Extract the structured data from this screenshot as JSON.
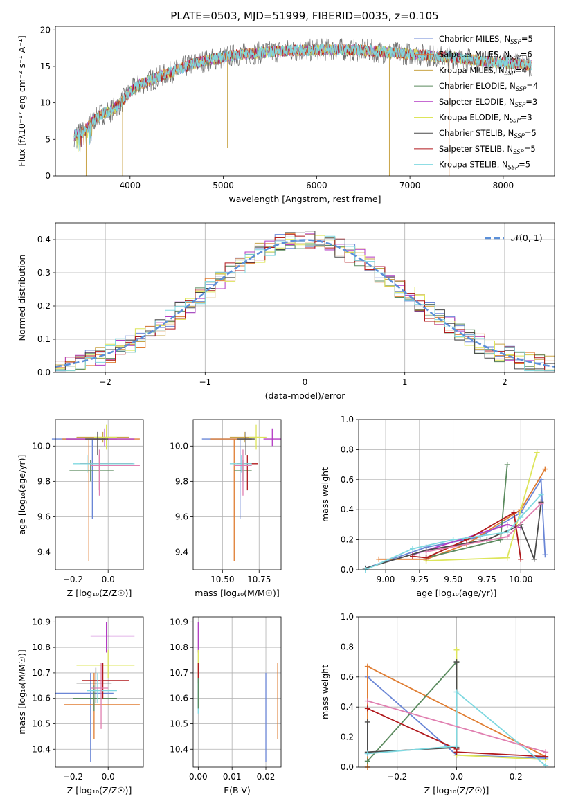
{
  "figure_title": "PLATE=0503, MJD=51999, FIBERID=0035, z=0.105",
  "colors": {
    "chabrier_miles": "#6a86d6",
    "salpeter_miles": "#e07d32",
    "kroupa_miles": "#c9a447",
    "chabrier_elodie": "#5a8a5e",
    "salpeter_elodie": "#b43ac4",
    "kroupa_elodie": "#dde55a",
    "chabrier_stelib": "#4a4a4a",
    "salpeter_stelib": "#b0181c",
    "kroupa_stelib": "#7fd8e0",
    "pink": "#e07fb0",
    "gaussian": "#5b8fd8",
    "grid": "#b0b0b0"
  },
  "chart_data": [
    {
      "id": "spectrum",
      "type": "line",
      "xlabel": "wavelength [Angstrom, rest frame]",
      "ylabel": "Flux [fλ10⁻¹⁷ erg cm⁻² s⁻¹ A⁻¹]",
      "xlim": [
        3200,
        8550
      ],
      "ylim": [
        0,
        20.5
      ],
      "xticks": [
        4000,
        5000,
        6000,
        7000,
        8000
      ],
      "yticks": [
        0,
        5,
        10,
        15,
        20
      ],
      "grid": false,
      "legend_position": "right",
      "legend": [
        "Chabrier MILES, N_SSP=5",
        "Salpeter MILES, N_SSP=6",
        "Kroupa MILES, N_SSP=4",
        "Chabrier ELODIE, N_SSP=4",
        "Salpeter ELODIE, N_SSP=3",
        "Kroupa ELODIE, N_SSP=3",
        "Chabrier STELIB, N_SSP=5",
        "Salpeter STELIB, N_SSP=5",
        "Kroupa STELIB, N_SSP=5"
      ],
      "continuum": {
        "x": [
          3400,
          3500,
          3600,
          3700,
          3800,
          3900,
          4000,
          4100,
          4300,
          4500,
          4700,
          4900,
          5100,
          5300,
          5500,
          5700,
          5900,
          6100,
          6300,
          6500,
          6700,
          6900,
          7100,
          7300,
          7500,
          7700,
          7900,
          8100,
          8300
        ],
        "y": [
          5.5,
          6.0,
          7.5,
          8.5,
          9.0,
          10.0,
          11.5,
          12.5,
          13.5,
          14.5,
          15.5,
          16.0,
          16.5,
          16.8,
          17.0,
          17.2,
          17.2,
          17.3,
          17.3,
          17.2,
          17.0,
          16.8,
          16.6,
          16.4,
          16.2,
          15.8,
          15.6,
          15.4,
          15.2
        ]
      },
      "spikes": [
        {
          "x": 3530,
          "y": 0
        },
        {
          "x": 3920,
          "y": 0
        },
        {
          "x": 5045,
          "y": 3.8
        },
        {
          "x": 6780,
          "y": 0
        },
        {
          "x": 7420,
          "y": 0
        }
      ]
    },
    {
      "id": "residual_histogram",
      "type": "histogram",
      "xlabel": "(data-model)/error",
      "ylabel": "Normed distribution",
      "xlim": [
        -2.5,
        2.5
      ],
      "ylim": [
        0,
        0.45
      ],
      "xticks": [
        -2,
        -1,
        0,
        1,
        2
      ],
      "yticks": [
        0.0,
        0.1,
        0.2,
        0.3,
        0.4
      ],
      "grid": true,
      "bin_width": 0.1,
      "gaussian_label": "𝒩(0, 1)",
      "legend_position": "top-right"
    },
    {
      "id": "age_vs_Z",
      "type": "errorbar",
      "xlabel": "Z [log₁₀(Z/Z☉)]",
      "ylabel": "age  [log₁₀(age/yr)]",
      "xlim": [
        -0.3,
        0.2
      ],
      "ylim": [
        9.3,
        10.15
      ],
      "xticks": [
        -0.2,
        0.0
      ],
      "yticks": [
        9.4,
        9.6,
        9.8,
        10.0
      ],
      "grid": true,
      "points": [
        {
          "series": "chabrier_miles",
          "x": -0.09,
          "y": 10.04,
          "xlo": -0.32,
          "xhi": 0.05,
          "ylo": 9.59,
          "yhi": 10.04
        },
        {
          "series": "salpeter_miles",
          "x": -0.11,
          "y": 10.04,
          "xlo": -0.26,
          "xhi": 0.18,
          "ylo": 9.35,
          "yhi": 10.04
        },
        {
          "series": "kroupa_miles",
          "x": -0.03,
          "y": 10.05,
          "xlo": -0.18,
          "xhi": 0.12,
          "ylo": 10.02,
          "yhi": 10.08
        },
        {
          "series": "chabrier_elodie",
          "x": -0.1,
          "y": 9.86,
          "xlo": -0.22,
          "xhi": 0.03,
          "ylo": 9.8,
          "yhi": 9.92
        },
        {
          "series": "salpeter_elodie",
          "x": -0.02,
          "y": 10.04,
          "xlo": -0.24,
          "xhi": 0.15,
          "ylo": 10.0,
          "yhi": 10.1
        },
        {
          "series": "kroupa_elodie",
          "x": -0.01,
          "y": 10.05,
          "xlo": -0.08,
          "xhi": 0.05,
          "ylo": 9.98,
          "yhi": 10.12
        },
        {
          "series": "chabrier_stelib",
          "x": -0.06,
          "y": 10.04,
          "xlo": -0.13,
          "xhi": 0.0,
          "ylo": 9.95,
          "yhi": 10.08
        },
        {
          "series": "salpeter_stelib",
          "x": -0.05,
          "y": 9.9,
          "xlo": -0.16,
          "xhi": 0.14,
          "ylo": 9.75,
          "yhi": 9.95
        },
        {
          "series": "kroupa_stelib",
          "x": -0.12,
          "y": 9.9,
          "xlo": -0.2,
          "xhi": 0.15,
          "ylo": 9.85,
          "yhi": 9.95
        },
        {
          "series": "pink",
          "x": -0.05,
          "y": 9.89,
          "xlo": -0.1,
          "xhi": 0.18,
          "ylo": 9.72,
          "yhi": 9.98
        }
      ]
    },
    {
      "id": "age_vs_mass",
      "type": "errorbar",
      "xlabel": "mass [log₁₀(M/M☉)]",
      "ylabel": "",
      "xlim": [
        10.3,
        10.9
      ],
      "ylim": [
        9.3,
        10.15
      ],
      "xticks": [
        10.5,
        10.75
      ],
      "yticks": [
        9.4,
        9.6,
        9.8,
        10.0
      ],
      "grid": true,
      "points": [
        {
          "series": "chabrier_miles",
          "x": 10.62,
          "y": 10.04,
          "xlo": 10.36,
          "xhi": 10.7,
          "ylo": 9.59,
          "yhi": 10.04
        },
        {
          "series": "salpeter_miles",
          "x": 10.58,
          "y": 10.04,
          "xlo": 10.42,
          "xhi": 10.7,
          "ylo": 9.35,
          "yhi": 10.04
        },
        {
          "series": "kroupa_miles",
          "x": 10.65,
          "y": 10.05,
          "xlo": 10.55,
          "xhi": 10.75,
          "ylo": 10.02,
          "yhi": 10.08
        },
        {
          "series": "chabrier_elodie",
          "x": 10.64,
          "y": 9.86,
          "xlo": 10.58,
          "xhi": 10.7,
          "ylo": 9.8,
          "yhi": 9.92
        },
        {
          "series": "salpeter_elodie",
          "x": 10.84,
          "y": 10.04,
          "xlo": 10.78,
          "xhi": 10.9,
          "ylo": 10.0,
          "yhi": 10.1
        },
        {
          "series": "kroupa_elodie",
          "x": 10.73,
          "y": 10.05,
          "xlo": 10.68,
          "xhi": 10.8,
          "ylo": 9.98,
          "yhi": 10.12
        },
        {
          "series": "chabrier_stelib",
          "x": 10.66,
          "y": 10.04,
          "xlo": 10.6,
          "xhi": 10.72,
          "ylo": 9.95,
          "yhi": 10.08
        },
        {
          "series": "salpeter_stelib",
          "x": 10.67,
          "y": 9.9,
          "xlo": 10.6,
          "xhi": 10.74,
          "ylo": 9.75,
          "yhi": 9.95
        },
        {
          "series": "kroupa_stelib",
          "x": 10.63,
          "y": 9.9,
          "xlo": 10.55,
          "xhi": 10.7,
          "ylo": 9.85,
          "yhi": 9.95
        },
        {
          "series": "pink",
          "x": 10.64,
          "y": 9.89,
          "xlo": 10.58,
          "xhi": 10.7,
          "ylo": 9.72,
          "yhi": 9.98
        }
      ]
    },
    {
      "id": "mass_weight_vs_age",
      "type": "line",
      "xlabel": "age  [log₁₀(age/yr)]",
      "ylabel": "mass weight",
      "xlim": [
        8.8,
        10.25
      ],
      "ylim": [
        0,
        1.0
      ],
      "xticks": [
        9.0,
        9.25,
        9.5,
        9.75,
        10.0
      ],
      "yticks": [
        0.0,
        0.2,
        0.4,
        0.6,
        0.8,
        1.0
      ],
      "grid": true,
      "series": [
        {
          "name": "chabrier_miles",
          "x": [
            8.85,
            9.3,
            9.7,
            10.0,
            10.15,
            10.18
          ],
          "y": [
            0.01,
            0.15,
            0.22,
            0.38,
            0.6,
            0.1
          ]
        },
        {
          "name": "salpeter_miles",
          "x": [
            8.95,
            9.3,
            9.6,
            10.0,
            10.18
          ],
          "y": [
            0.07,
            0.07,
            0.17,
            0.4,
            0.67
          ]
        },
        {
          "name": "chabrier_elodie",
          "x": [
            9.3,
            9.85,
            9.9
          ],
          "y": [
            0.08,
            0.2,
            0.7
          ]
        },
        {
          "name": "salpeter_elodie",
          "x": [
            9.2,
            9.9,
            10.0
          ],
          "y": [
            0.1,
            0.3,
            0.28
          ]
        },
        {
          "name": "kroupa_elodie",
          "x": [
            9.3,
            9.9,
            10.12
          ],
          "y": [
            0.06,
            0.08,
            0.78
          ]
        },
        {
          "name": "chabrier_stelib",
          "x": [
            8.85,
            9.3,
            9.75,
            10.0,
            10.1,
            10.15
          ],
          "y": [
            0.01,
            0.13,
            0.2,
            0.3,
            0.07,
            0.45
          ]
        },
        {
          "name": "salpeter_stelib",
          "x": [
            9.2,
            9.3,
            9.6,
            9.95,
            10.0
          ],
          "y": [
            0.09,
            0.08,
            0.2,
            0.38,
            0.07
          ]
        },
        {
          "name": "kroupa_stelib",
          "x": [
            8.85,
            9.2,
            9.5,
            9.9,
            10.0,
            10.15
          ],
          "y": [
            0.0,
            0.14,
            0.2,
            0.25,
            0.35,
            0.5
          ]
        },
        {
          "name": "pink",
          "x": [
            9.3,
            9.9,
            10.15
          ],
          "y": [
            0.12,
            0.22,
            0.44
          ]
        }
      ]
    },
    {
      "id": "mass_vs_Z",
      "type": "errorbar",
      "xlabel": "Z [log₁₀(Z/Z☉)]",
      "ylabel": "mass [log₁₀(M/M☉)]",
      "xlim": [
        -0.3,
        0.2
      ],
      "ylim": [
        10.33,
        10.92
      ],
      "xticks": [
        -0.2,
        0.0
      ],
      "yticks": [
        10.4,
        10.5,
        10.6,
        10.7,
        10.8,
        10.9
      ],
      "grid": true,
      "points": [
        {
          "series": "chabrier_miles",
          "x": -0.1,
          "y": 10.62,
          "xlo": -0.3,
          "xhi": 0.03,
          "ylo": 10.35,
          "yhi": 10.7
        },
        {
          "series": "salpeter_miles",
          "x": -0.08,
          "y": 10.575,
          "xlo": -0.25,
          "xhi": 0.18,
          "ylo": 10.44,
          "yhi": 10.7
        },
        {
          "series": "chabrier_elodie",
          "x": -0.08,
          "y": 10.6,
          "xlo": -0.2,
          "xhi": 0.05,
          "ylo": 10.55,
          "yhi": 10.65
        },
        {
          "series": "salpeter_elodie",
          "x": -0.01,
          "y": 10.845,
          "xlo": -0.1,
          "xhi": 0.15,
          "ylo": 10.78,
          "yhi": 10.9
        },
        {
          "series": "kroupa_elodie",
          "x": 0.0,
          "y": 10.73,
          "xlo": -0.18,
          "xhi": 0.15,
          "ylo": 10.68,
          "yhi": 10.79
        },
        {
          "series": "chabrier_stelib",
          "x": -0.07,
          "y": 10.66,
          "xlo": -0.18,
          "xhi": 0.02,
          "ylo": 10.58,
          "yhi": 10.72
        },
        {
          "series": "salpeter_stelib",
          "x": -0.03,
          "y": 10.67,
          "xlo": -0.15,
          "xhi": 0.12,
          "ylo": 10.6,
          "yhi": 10.74
        },
        {
          "series": "kroupa_stelib",
          "x": -0.06,
          "y": 10.63,
          "xlo": -0.12,
          "xhi": 0.05,
          "ylo": 10.58,
          "yhi": 10.7
        },
        {
          "series": "pink",
          "x": -0.04,
          "y": 10.64,
          "xlo": -0.1,
          "xhi": 0.0,
          "ylo": 10.48,
          "yhi": 10.74
        }
      ]
    },
    {
      "id": "mass_vs_ebv",
      "type": "errorbar",
      "xlabel": "E(B-V)",
      "ylabel": "",
      "xlim": [
        -0.0015,
        0.0245
      ],
      "ylim": [
        10.33,
        10.92
      ],
      "xticks": [
        0.0,
        0.01,
        0.02
      ],
      "yticks": [
        10.4,
        10.5,
        10.6,
        10.7,
        10.8,
        10.9
      ],
      "grid": true,
      "points": [
        {
          "series": "chabrier_miles",
          "x": 0.02,
          "y": 10.62,
          "ylo": 10.35,
          "yhi": 10.7
        },
        {
          "series": "salpeter_miles",
          "x": 0.0235,
          "y": 10.575,
          "ylo": 10.44,
          "yhi": 10.74
        },
        {
          "series": "salpeter_elodie",
          "x": 0.0,
          "y": 10.845,
          "ylo": 10.78,
          "yhi": 10.9
        },
        {
          "series": "kroupa_elodie",
          "x": 0.0,
          "y": 10.73,
          "ylo": 10.68,
          "yhi": 10.79
        },
        {
          "series": "salpeter_stelib",
          "x": 0.0,
          "y": 10.7,
          "ylo": 10.66,
          "yhi": 10.74
        },
        {
          "series": "kroupa_stelib",
          "x": 0.0,
          "y": 10.6,
          "ylo": 10.54,
          "yhi": 10.68
        },
        {
          "series": "chabrier_elodie",
          "x": 0.0,
          "y": 10.62,
          "ylo": 10.56,
          "yhi": 10.68
        }
      ]
    },
    {
      "id": "mass_weight_vs_Z",
      "type": "line",
      "xlabel": "Z [log₁₀(Z/Z☉)]",
      "ylabel": "mass weight",
      "xlim": [
        -0.33,
        0.33
      ],
      "ylim": [
        0,
        1.0
      ],
      "xticks": [
        -0.2,
        0.0,
        0.2
      ],
      "yticks": [
        0.0,
        0.2,
        0.4,
        0.6,
        0.8,
        1.0
      ],
      "grid": true,
      "series": [
        {
          "name": "chabrier_miles",
          "x": [
            -0.3,
            -0.3,
            0.0,
            0.3
          ],
          "y": [
            0.09,
            0.6,
            0.08,
            0.06
          ]
        },
        {
          "name": "salpeter_miles",
          "x": [
            -0.3,
            -0.3,
            0.3
          ],
          "y": [
            0.0,
            0.67,
            0.07
          ]
        },
        {
          "name": "chabrier_elodie",
          "x": [
            -0.3,
            0.0
          ],
          "y": [
            0.04,
            0.7
          ]
        },
        {
          "name": "kroupa_elodie",
          "x": [
            0.0,
            0.0,
            0.3
          ],
          "y": [
            0.78,
            0.08,
            0.05
          ]
        },
        {
          "name": "chabrier_stelib",
          "x": [
            -0.3,
            -0.3,
            0.0,
            0.0
          ],
          "y": [
            0.3,
            0.1,
            0.13,
            0.7
          ]
        },
        {
          "name": "salpeter_stelib",
          "x": [
            -0.3,
            0.0,
            0.0,
            0.3
          ],
          "y": [
            0.39,
            0.12,
            0.1,
            0.07
          ]
        },
        {
          "name": "kroupa_stelib",
          "x": [
            -0.3,
            0.0,
            0.0,
            0.3
          ],
          "y": [
            0.09,
            0.14,
            0.5,
            0.01
          ]
        },
        {
          "name": "pink",
          "x": [
            -0.3,
            0.3
          ],
          "y": [
            0.44,
            0.1
          ]
        }
      ]
    }
  ]
}
